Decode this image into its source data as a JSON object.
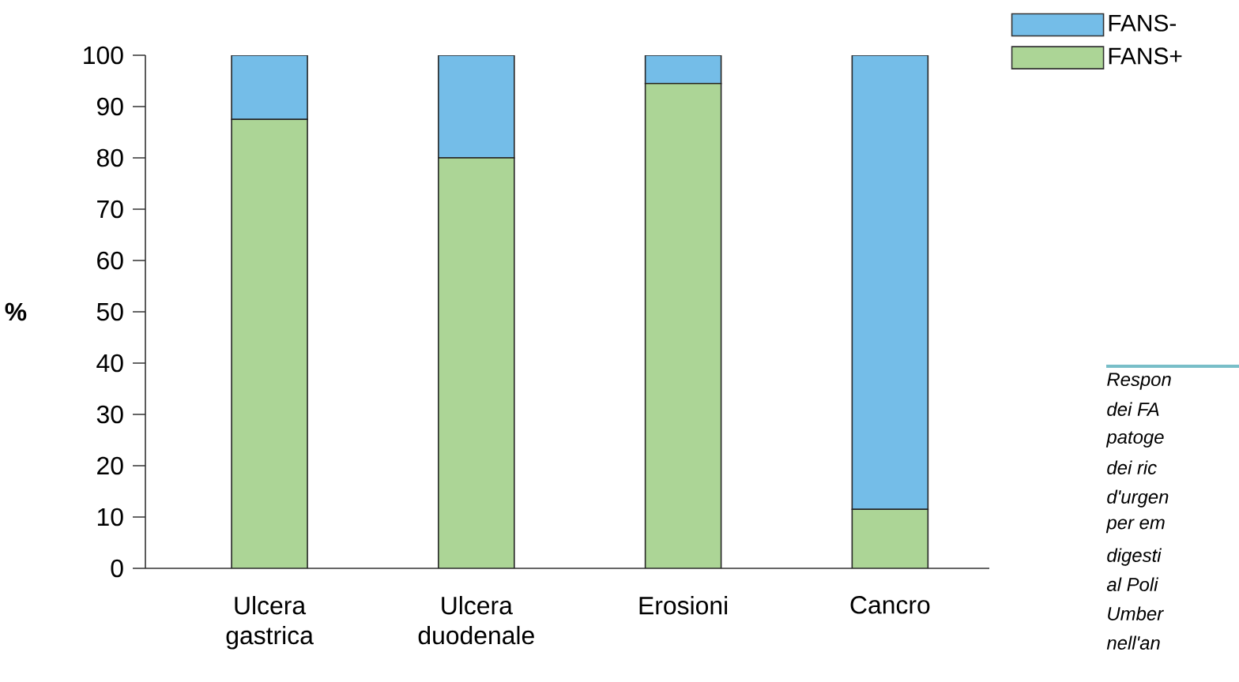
{
  "chart_data": {
    "type": "bar",
    "stacked": true,
    "ylabel": "%",
    "categories": [
      "Ulcera gastrica",
      "Ulcera duodenale",
      "Erosioni",
      "Cancro"
    ],
    "series": [
      {
        "name": "FANS+",
        "color": "#acd596",
        "values": [
          87.5,
          80,
          94.5,
          11.5
        ]
      },
      {
        "name": "FANS-",
        "color": "#74bde8",
        "values": [
          12.5,
          20,
          5.5,
          88.5
        ]
      }
    ],
    "ylim": [
      0,
      100
    ],
    "yticks": [
      0,
      10,
      20,
      30,
      40,
      50,
      60,
      70,
      80,
      90,
      100
    ],
    "grid": false,
    "legend": "top right",
    "annotations": [
      "Respon",
      "dei FA",
      "patoge",
      "dei ric",
      "d'urgen",
      "per em",
      "digesti",
      "al Poli",
      "Umber",
      "nell'an"
    ]
  }
}
